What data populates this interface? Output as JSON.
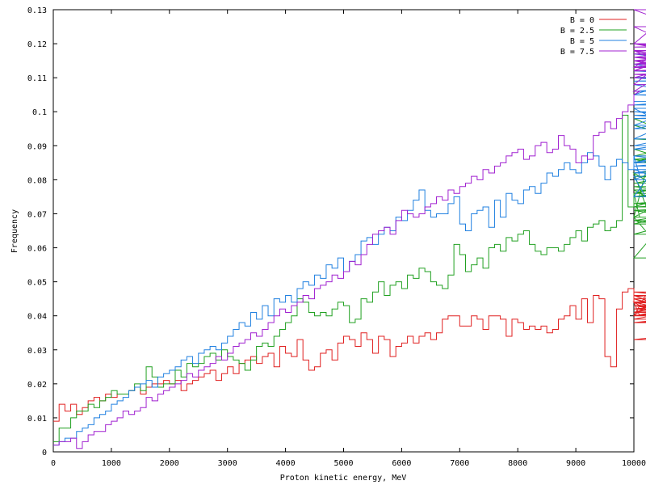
{
  "chart_data": {
    "type": "line",
    "title": "",
    "xlabel": "Proton kinetic energy, MeV",
    "ylabel": "Frequency",
    "xlim": [
      0,
      10000
    ],
    "ylim": [
      0,
      0.13
    ],
    "grid": false,
    "legend_position": "top-right",
    "x_ticks": [
      0,
      1000,
      2000,
      3000,
      4000,
      5000,
      6000,
      7000,
      8000,
      9000,
      10000
    ],
    "x_tick_labels": [
      "0",
      "1000",
      "2000",
      "3000",
      "4000",
      "5000",
      "6000",
      "7000",
      "8000",
      "9000",
      "10000"
    ],
    "y_ticks": [
      0,
      0.01,
      0.02,
      0.03,
      0.04,
      0.05,
      0.06,
      0.07,
      0.08,
      0.09,
      0.1,
      0.11,
      0.12,
      0.13
    ],
    "y_tick_labels": [
      "0",
      "0.01",
      "0.02",
      "0.03",
      "0.04",
      "0.05",
      "0.06",
      "0.07",
      "0.08",
      "0.09",
      "0.1",
      "0.11",
      "0.12",
      "0.13"
    ],
    "bin_width": 100,
    "bin_start": 0,
    "series": [
      {
        "name": "B = 0",
        "color": "#e02020",
        "values": [
          0.009,
          0.014,
          0.012,
          0.014,
          0.011,
          0.013,
          0.015,
          0.016,
          0.015,
          0.017,
          0.016,
          0.017,
          0.017,
          0.018,
          0.019,
          0.017,
          0.019,
          0.02,
          0.02,
          0.021,
          0.02,
          0.021,
          0.018,
          0.02,
          0.021,
          0.022,
          0.023,
          0.024,
          0.021,
          0.023,
          0.025,
          0.023,
          0.026,
          0.027,
          0.028,
          0.026,
          0.028,
          0.029,
          0.025,
          0.031,
          0.029,
          0.028,
          0.033,
          0.027,
          0.024,
          0.025,
          0.029,
          0.03,
          0.027,
          0.032,
          0.034,
          0.033,
          0.031,
          0.035,
          0.033,
          0.029,
          0.034,
          0.033,
          0.028,
          0.031,
          0.032,
          0.034,
          0.032,
          0.034,
          0.035,
          0.033,
          0.035,
          0.039,
          0.04,
          0.04,
          0.037,
          0.037,
          0.04,
          0.039,
          0.036,
          0.04,
          0.04,
          0.039,
          0.034,
          0.039,
          0.038,
          0.036,
          0.037,
          0.036,
          0.037,
          0.035,
          0.036,
          0.039,
          0.04,
          0.043,
          0.039,
          0.045,
          0.038,
          0.046,
          0.045,
          0.028,
          0.025,
          0.042,
          0.047,
          0.048,
          0.044,
          0.04,
          0.046,
          0.044,
          0.04,
          0.047,
          0.046,
          0.041,
          0.045,
          0.04,
          0.043,
          0.042,
          0.041,
          0.045,
          0.039,
          0.044,
          0.038,
          0.04,
          0.04,
          0.044,
          0.042,
          0.046,
          0.041,
          0.043,
          0.044,
          0.047,
          0.043,
          0.038,
          0.043,
          0.04,
          0.044,
          0.043,
          0.033,
          0.039
        ]
      },
      {
        "name": "B = 2.5",
        "color": "#20a020",
        "values": [
          0.003,
          0.007,
          0.007,
          0.01,
          0.012,
          0.012,
          0.014,
          0.013,
          0.015,
          0.016,
          0.018,
          0.017,
          0.017,
          0.018,
          0.02,
          0.018,
          0.025,
          0.022,
          0.019,
          0.02,
          0.02,
          0.024,
          0.022,
          0.026,
          0.025,
          0.026,
          0.028,
          0.029,
          0.027,
          0.03,
          0.028,
          0.027,
          0.026,
          0.024,
          0.027,
          0.031,
          0.032,
          0.031,
          0.034,
          0.036,
          0.038,
          0.04,
          0.045,
          0.044,
          0.041,
          0.04,
          0.041,
          0.04,
          0.042,
          0.044,
          0.043,
          0.038,
          0.039,
          0.045,
          0.044,
          0.047,
          0.05,
          0.046,
          0.049,
          0.05,
          0.048,
          0.052,
          0.051,
          0.054,
          0.053,
          0.05,
          0.049,
          0.048,
          0.052,
          0.061,
          0.058,
          0.053,
          0.055,
          0.057,
          0.054,
          0.06,
          0.061,
          0.059,
          0.063,
          0.062,
          0.064,
          0.065,
          0.061,
          0.059,
          0.058,
          0.06,
          0.06,
          0.059,
          0.061,
          0.063,
          0.065,
          0.062,
          0.066,
          0.067,
          0.068,
          0.065,
          0.066,
          0.068,
          0.099,
          0.072,
          0.076,
          0.069,
          0.082,
          0.068,
          0.067,
          0.069,
          0.057,
          0.071,
          0.069,
          0.077,
          0.068,
          0.071,
          0.072,
          0.073,
          0.075,
          0.076,
          0.082,
          0.064,
          0.072,
          0.082,
          0.085,
          0.096,
          0.086,
          0.078,
          0.072,
          0.086,
          0.089,
          0.075,
          0.081,
          0.079,
          0.087,
          0.098,
          0.076,
          0.092,
          0.089
        ]
      },
      {
        "name": "B = 5",
        "color": "#2080e0",
        "values": [
          0.002,
          0.003,
          0.004,
          0.004,
          0.006,
          0.007,
          0.008,
          0.01,
          0.011,
          0.012,
          0.014,
          0.015,
          0.016,
          0.018,
          0.019,
          0.02,
          0.021,
          0.019,
          0.022,
          0.023,
          0.024,
          0.025,
          0.027,
          0.028,
          0.026,
          0.029,
          0.03,
          0.031,
          0.03,
          0.032,
          0.034,
          0.036,
          0.038,
          0.037,
          0.041,
          0.039,
          0.043,
          0.04,
          0.045,
          0.044,
          0.046,
          0.044,
          0.048,
          0.05,
          0.049,
          0.052,
          0.051,
          0.055,
          0.054,
          0.057,
          0.053,
          0.056,
          0.058,
          0.062,
          0.063,
          0.061,
          0.064,
          0.066,
          0.065,
          0.069,
          0.068,
          0.071,
          0.074,
          0.077,
          0.071,
          0.069,
          0.07,
          0.07,
          0.073,
          0.075,
          0.067,
          0.065,
          0.07,
          0.071,
          0.072,
          0.066,
          0.074,
          0.069,
          0.076,
          0.074,
          0.073,
          0.077,
          0.078,
          0.076,
          0.079,
          0.082,
          0.081,
          0.083,
          0.085,
          0.083,
          0.082,
          0.085,
          0.088,
          0.087,
          0.084,
          0.08,
          0.084,
          0.086,
          0.085,
          0.083,
          0.087,
          0.081,
          0.075,
          0.082,
          0.083,
          0.08,
          0.084,
          0.085,
          0.087,
          0.085,
          0.089,
          0.092,
          0.101,
          0.09,
          0.095,
          0.1,
          0.098,
          0.099,
          0.096,
          0.108,
          0.102,
          0.105,
          0.117,
          0.112,
          0.11,
          0.106,
          0.109,
          0.11,
          0.113,
          0.117,
          0.114,
          0.105,
          0.103
        ]
      },
      {
        "name": "B = 7.5",
        "color": "#a020d0",
        "values": [
          0.002,
          0.003,
          0.003,
          0.004,
          0.001,
          0.003,
          0.005,
          0.006,
          0.006,
          0.008,
          0.009,
          0.01,
          0.012,
          0.011,
          0.012,
          0.013,
          0.016,
          0.015,
          0.017,
          0.018,
          0.019,
          0.02,
          0.021,
          0.023,
          0.022,
          0.024,
          0.025,
          0.026,
          0.028,
          0.027,
          0.029,
          0.031,
          0.032,
          0.033,
          0.035,
          0.034,
          0.036,
          0.038,
          0.04,
          0.042,
          0.041,
          0.043,
          0.044,
          0.046,
          0.045,
          0.048,
          0.049,
          0.05,
          0.052,
          0.051,
          0.053,
          0.056,
          0.055,
          0.058,
          0.061,
          0.064,
          0.065,
          0.066,
          0.064,
          0.068,
          0.071,
          0.07,
          0.069,
          0.07,
          0.072,
          0.073,
          0.075,
          0.074,
          0.077,
          0.076,
          0.078,
          0.079,
          0.081,
          0.08,
          0.083,
          0.082,
          0.084,
          0.085,
          0.087,
          0.088,
          0.089,
          0.086,
          0.087,
          0.09,
          0.091,
          0.088,
          0.089,
          0.093,
          0.09,
          0.089,
          0.085,
          0.087,
          0.086,
          0.093,
          0.094,
          0.097,
          0.095,
          0.098,
          0.1,
          0.102,
          0.105,
          0.106,
          0.108,
          0.112,
          0.115,
          0.113,
          0.12,
          0.13,
          0.125,
          0.118,
          0.11,
          0.115,
          0.112,
          0.12,
          0.116,
          0.113,
          0.118,
          0.111,
          0.112,
          0.114,
          0.116,
          0.12,
          0.113,
          0.115,
          0.119,
          0.12,
          0.116,
          0.113,
          0.117,
          0.114,
          0.12,
          0.118,
          0.111,
          0.108
        ]
      }
    ]
  }
}
